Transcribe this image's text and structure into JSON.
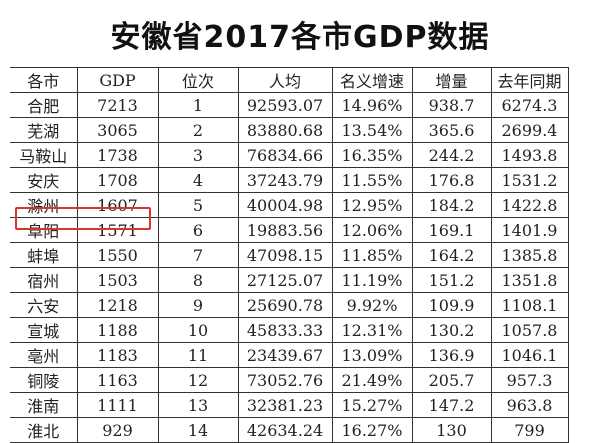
{
  "title": "安徽省2017各市GDP数据",
  "table": {
    "headers": [
      "各市",
      "GDP",
      "位次",
      "人均",
      "名义增速",
      "增量",
      "去年同期"
    ],
    "rows": [
      [
        "合肥",
        "7213",
        "1",
        "92593.07",
        "14.96%",
        "938.7",
        "6274.3"
      ],
      [
        "芜湖",
        "3065",
        "2",
        "83880.68",
        "13.54%",
        "365.6",
        "2699.4"
      ],
      [
        "马鞍山",
        "1738",
        "3",
        "76834.66",
        "16.35%",
        "244.2",
        "1493.8"
      ],
      [
        "安庆",
        "1708",
        "4",
        "37243.79",
        "11.55%",
        "176.8",
        "1531.2"
      ],
      [
        "滁州",
        "1607",
        "5",
        "40004.98",
        "12.95%",
        "184.2",
        "1422.8"
      ],
      [
        "阜阳",
        "1571",
        "6",
        "19883.56",
        "12.06%",
        "169.1",
        "1401.9"
      ],
      [
        "蚌埠",
        "1550",
        "7",
        "47098.15",
        "11.85%",
        "164.2",
        "1385.8"
      ],
      [
        "宿州",
        "1503",
        "8",
        "27125.07",
        "11.19%",
        "151.2",
        "1351.8"
      ],
      [
        "六安",
        "1218",
        "9",
        "25690.78",
        "9.92%",
        "109.9",
        "1108.1"
      ],
      [
        "宣城",
        "1188",
        "10",
        "45833.33",
        "12.31%",
        "130.2",
        "1057.8"
      ],
      [
        "亳州",
        "1183",
        "11",
        "23439.67",
        "13.09%",
        "136.9",
        "1046.1"
      ],
      [
        "铜陵",
        "1163",
        "12",
        "73052.76",
        "21.49%",
        "205.7",
        "957.3"
      ],
      [
        "淮南",
        "1111",
        "13",
        "32381.23",
        "15.27%",
        "147.2",
        "963.8"
      ],
      [
        "淮北",
        "929",
        "14",
        "42634.24",
        "16.27%",
        "130",
        "799"
      ]
    ],
    "highlighted_row": "阜阳",
    "highlight_color": "#d9352b"
  }
}
